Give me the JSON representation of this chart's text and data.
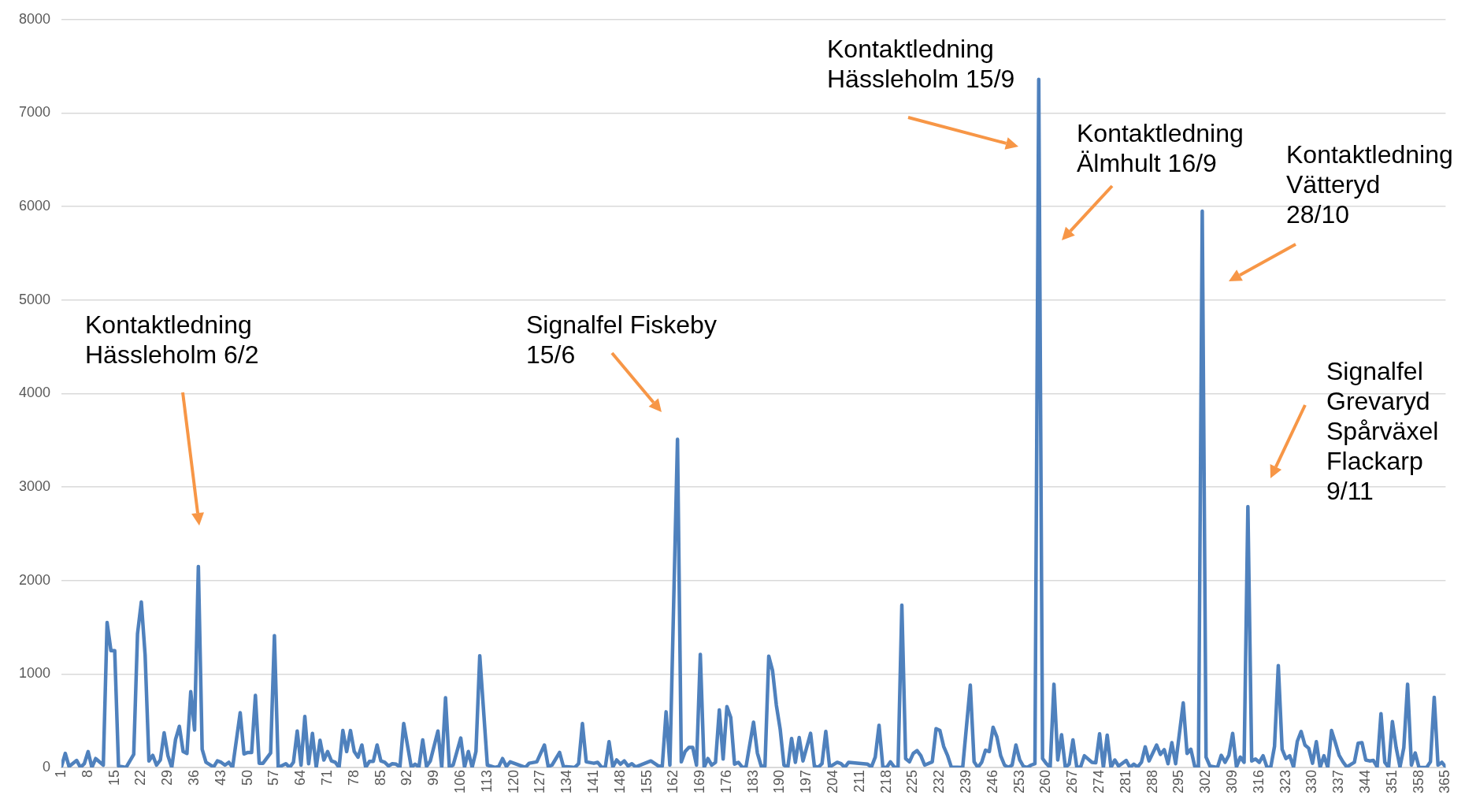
{
  "chart_data": {
    "type": "line",
    "x": [
      1,
      2,
      3,
      5,
      6,
      7,
      8,
      9,
      10,
      12,
      13,
      14,
      15,
      16,
      18,
      20,
      21,
      22,
      23,
      24,
      25,
      26,
      27,
      28,
      29,
      30,
      31,
      32,
      33,
      34,
      35,
      36,
      37,
      38,
      39,
      41,
      42,
      43,
      44,
      45,
      46,
      48,
      49,
      50,
      51,
      52,
      53,
      54,
      56,
      57,
      58,
      60,
      61,
      62,
      63,
      64,
      65,
      66,
      67,
      68,
      69,
      70,
      71,
      72,
      73,
      74,
      75,
      76,
      77,
      78,
      79,
      80,
      81,
      82,
      83,
      84,
      85,
      86,
      87,
      88,
      89,
      90,
      91,
      93,
      94,
      95,
      96,
      97,
      98,
      100,
      101,
      102,
      103,
      104,
      106,
      107,
      108,
      109,
      110,
      111,
      113,
      115,
      116,
      117,
      118,
      119,
      123,
      124,
      126,
      128,
      129,
      130,
      132,
      133,
      135,
      136,
      137,
      138,
      139,
      141,
      142,
      143,
      144,
      145,
      146,
      147,
      148,
      149,
      150,
      151,
      152,
      156,
      158,
      159,
      160,
      161,
      163,
      164,
      165,
      166,
      167,
      168,
      169,
      170,
      171,
      172,
      173,
      174,
      175,
      176,
      177,
      178,
      179,
      180,
      181,
      183,
      184,
      185,
      186,
      187,
      188,
      189,
      190,
      191,
      192,
      193,
      194,
      195,
      196,
      198,
      199,
      200,
      201,
      202,
      203,
      205,
      206,
      207,
      208,
      213,
      214,
      215,
      216,
      217,
      218,
      219,
      220,
      221,
      222,
      223,
      224,
      225,
      226,
      227,
      228,
      230,
      231,
      232,
      233,
      234,
      235,
      238,
      240,
      241,
      242,
      243,
      244,
      245,
      246,
      247,
      248,
      249,
      250,
      251,
      252,
      253,
      254,
      255,
      256,
      257,
      258,
      259,
      260,
      261,
      262,
      263,
      264,
      265,
      266,
      267,
      268,
      269,
      270,
      272,
      273,
      274,
      275,
      276,
      277,
      278,
      279,
      281,
      282,
      283,
      284,
      285,
      286,
      287,
      289,
      290,
      291,
      292,
      293,
      294,
      296,
      297,
      298,
      299,
      300,
      301,
      302,
      303,
      305,
      306,
      307,
      308,
      309,
      310,
      311,
      312,
      313,
      314,
      315,
      316,
      317,
      318,
      319,
      320,
      321,
      322,
      323,
      324,
      325,
      326,
      327,
      328,
      329,
      330,
      331,
      332,
      333,
      334,
      335,
      336,
      337,
      338,
      339,
      341,
      342,
      343,
      344,
      345,
      346,
      347,
      348,
      349,
      350,
      351,
      352,
      353,
      354,
      355,
      356,
      357,
      358,
      360,
      361,
      362,
      363,
      364,
      365
    ],
    "values": [
      10,
      150,
      10,
      75,
      0,
      40,
      170,
      0,
      95,
      25,
      1550,
      1250,
      1250,
      15,
      0,
      140,
      1430,
      1770,
      1200,
      70,
      130,
      25,
      80,
      370,
      125,
      0,
      300,
      440,
      170,
      150,
      810,
      400,
      2150,
      195,
      55,
      5,
      70,
      55,
      25,
      55,
      0,
      585,
      145,
      160,
      160,
      770,
      45,
      45,
      155,
      1410,
      0,
      40,
      0,
      55,
      390,
      25,
      545,
      40,
      365,
      0,
      290,
      80,
      170,
      70,
      55,
      0,
      395,
      170,
      395,
      170,
      110,
      240,
      0,
      65,
      65,
      240,
      70,
      55,
      15,
      40,
      35,
      5,
      470,
      0,
      35,
      5,
      295,
      10,
      70,
      390,
      0,
      745,
      5,
      25,
      315,
      5,
      170,
      0,
      170,
      1195,
      25,
      0,
      10,
      95,
      10,
      60,
      0,
      45,
      60,
      240,
      10,
      25,
      160,
      10,
      5,
      0,
      40,
      470,
      60,
      45,
      55,
      5,
      0,
      275,
      5,
      80,
      35,
      70,
      15,
      40,
      5,
      70,
      15,
      15,
      595,
      25,
      3510,
      60,
      170,
      215,
      215,
      25,
      1210,
      0,
      95,
      25,
      55,
      615,
      90,
      650,
      535,
      35,
      55,
      5,
      0,
      485,
      155,
      15,
      15,
      1190,
      1035,
      665,
      410,
      25,
      0,
      310,
      55,
      320,
      70,
      365,
      15,
      0,
      40,
      385,
      5,
      55,
      40,
      0,
      55,
      35,
      5,
      110,
      450,
      5,
      0,
      60,
      5,
      0,
      1735,
      95,
      60,
      150,
      180,
      125,
      25,
      60,
      415,
      395,
      225,
      130,
      5,
      0,
      880,
      60,
      0,
      55,
      185,
      170,
      430,
      325,
      125,
      25,
      0,
      25,
      240,
      80,
      10,
      0,
      25,
      40,
      7360,
      95,
      40,
      0,
      890,
      80,
      350,
      0,
      35,
      295,
      5,
      5,
      125,
      55,
      50,
      360,
      0,
      345,
      0,
      80,
      15,
      75,
      0,
      35,
      5,
      55,
      220,
      70,
      240,
      140,
      190,
      40,
      265,
      40,
      690,
      150,
      195,
      15,
      0,
      5950,
      110,
      15,
      0,
      130,
      55,
      130,
      365,
      5,
      110,
      55,
      2790,
      70,
      90,
      55,
      125,
      5,
      0,
      225,
      1090,
      195,
      95,
      125,
      5,
      280,
      385,
      240,
      205,
      45,
      275,
      0,
      125,
      0,
      395,
      265,
      130,
      60,
      5,
      55,
      260,
      265,
      80,
      70,
      75,
      5,
      575,
      55,
      0,
      490,
      210,
      5,
      210,
      890,
      25,
      155,
      0,
      0,
      60,
      750,
      25,
      55,
      5
    ],
    "color": "#4f81bd",
    "xlim": [
      1,
      365
    ],
    "xticks": [
      1,
      8,
      15,
      22,
      29,
      36,
      43,
      50,
      57,
      64,
      71,
      78,
      85,
      92,
      99,
      106,
      113,
      120,
      127,
      134,
      141,
      148,
      155,
      162,
      169,
      176,
      183,
      190,
      197,
      204,
      211,
      218,
      225,
      232,
      239,
      246,
      253,
      260,
      267,
      274,
      281,
      288,
      295,
      302,
      309,
      316,
      323,
      330,
      337,
      344,
      351,
      358,
      365
    ],
    "ylim": [
      0,
      8000
    ],
    "yticks": [
      0,
      1000,
      2000,
      3000,
      4000,
      5000,
      6000,
      7000,
      8000
    ],
    "grid": "y",
    "legend": false,
    "marker": "none",
    "line_style": "solid",
    "annotations": [
      "Kontaktledning\nHässleholm 6/2",
      "Signalfel Fiskeby\n15/6",
      "Kontaktledning\nHässleholm 15/9",
      "Kontaktledning\nÄlmhult 16/9",
      "Kontaktledning\nVätteryd\n28/10",
      "Signalfel\nGrevaryd\nSpårväxel\nFlackarp\n9/11"
    ]
  }
}
